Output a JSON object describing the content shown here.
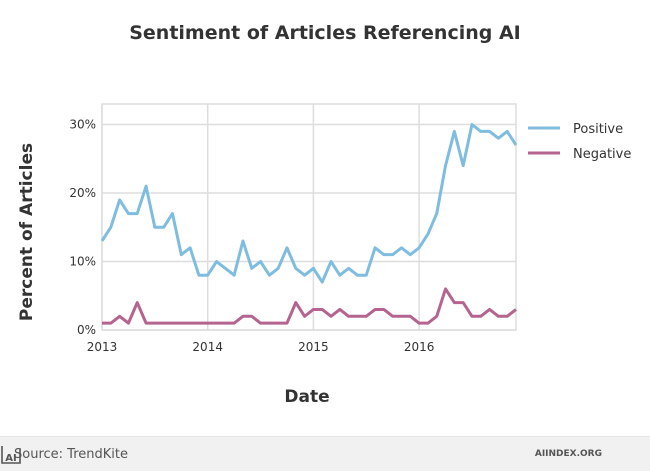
{
  "chart_data": {
    "type": "line",
    "title": "Sentiment of Articles Referencing AI",
    "xlabel": "Date",
    "ylabel": "Percent of Articles",
    "x_ticks": [
      "2013",
      "2014",
      "2015",
      "2016"
    ],
    "y_ticks": [
      "0%",
      "10%",
      "20%",
      "30%"
    ],
    "ylim": [
      0,
      33
    ],
    "xlim": [
      "2013-01",
      "2016-12"
    ],
    "grid": true,
    "legend": "right",
    "x": [
      "2013-01",
      "2013-02",
      "2013-03",
      "2013-04",
      "2013-05",
      "2013-06",
      "2013-07",
      "2013-08",
      "2013-09",
      "2013-10",
      "2013-11",
      "2013-12",
      "2014-01",
      "2014-02",
      "2014-03",
      "2014-04",
      "2014-05",
      "2014-06",
      "2014-07",
      "2014-08",
      "2014-09",
      "2014-10",
      "2014-11",
      "2014-12",
      "2015-01",
      "2015-02",
      "2015-03",
      "2015-04",
      "2015-05",
      "2015-06",
      "2015-07",
      "2015-08",
      "2015-09",
      "2015-10",
      "2015-11",
      "2015-12",
      "2016-01",
      "2016-02",
      "2016-03",
      "2016-04",
      "2016-05",
      "2016-06",
      "2016-07",
      "2016-08",
      "2016-09",
      "2016-10",
      "2016-11",
      "2016-12"
    ],
    "series": [
      {
        "name": "Positive",
        "color": "#7fbde0",
        "values": [
          13,
          15,
          19,
          17,
          17,
          21,
          15,
          15,
          17,
          11,
          12,
          8,
          8,
          10,
          9,
          8,
          13,
          9,
          10,
          8,
          9,
          12,
          9,
          8,
          9,
          7,
          10,
          8,
          9,
          8,
          8,
          12,
          11,
          11,
          12,
          11,
          12,
          14,
          17,
          24,
          29,
          24,
          30,
          29,
          29,
          28,
          29,
          27
        ]
      },
      {
        "name": "Negative",
        "color": "#b5648f",
        "values": [
          1,
          1,
          2,
          1,
          4,
          1,
          1,
          1,
          1,
          1,
          1,
          1,
          1,
          1,
          1,
          1,
          2,
          2,
          1,
          1,
          1,
          1,
          4,
          2,
          3,
          3,
          2,
          3,
          2,
          2,
          2,
          3,
          3,
          2,
          2,
          2,
          1,
          1,
          2,
          6,
          4,
          4,
          2,
          2,
          3,
          2,
          2,
          3
        ]
      }
    ]
  },
  "footer": {
    "source": "Source: TrendKite",
    "brand": "AIINDEX.ORG",
    "logo_text": "AI"
  }
}
